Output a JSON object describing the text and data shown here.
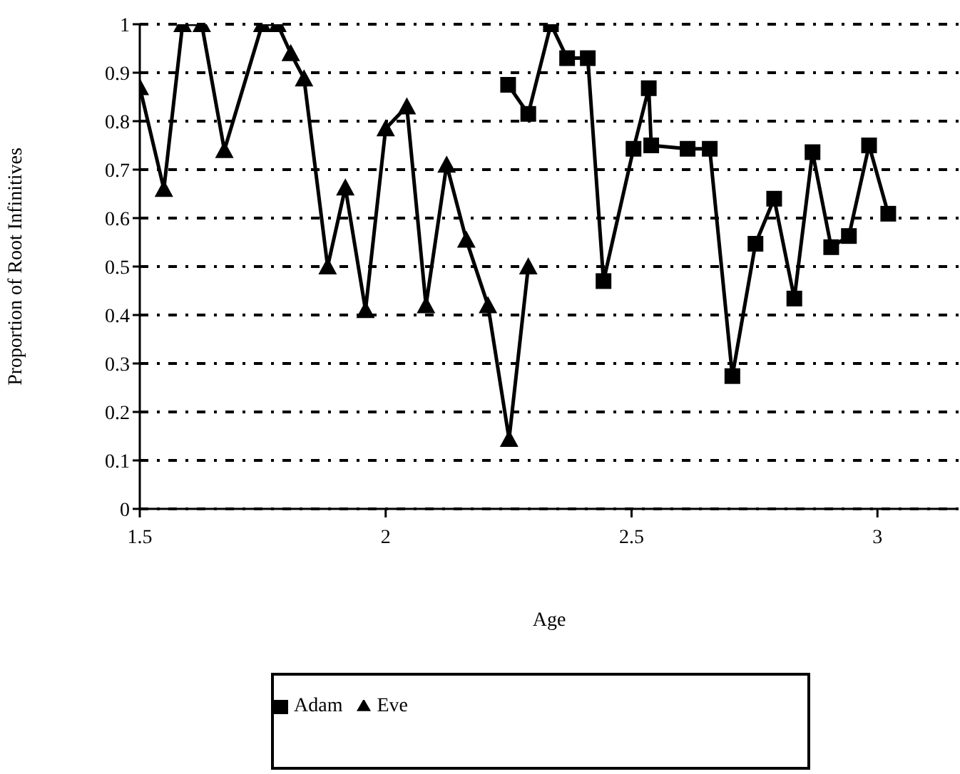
{
  "chart_data": {
    "type": "line",
    "xlabel": "Age",
    "ylabel": "Proportion of Root Infinitives",
    "xlim": [
      1.5,
      3.165
    ],
    "xticks": [
      1.5,
      2,
      2.5,
      3
    ],
    "ylim": [
      0,
      1
    ],
    "yticks": [
      0,
      0.1,
      0.2,
      0.3,
      0.4,
      0.5,
      0.6,
      0.7,
      0.8,
      0.9,
      1
    ],
    "grid": "y",
    "legend": "bottom",
    "line_style": "solid",
    "series": [
      {
        "name": "Adam",
        "color": "#000000",
        "marker": "square",
        "x": [
          2.249,
          2.29,
          2.336,
          2.369,
          2.411,
          2.443,
          2.504,
          2.535,
          2.54,
          2.614,
          2.659,
          2.705,
          2.752,
          2.79,
          2.831,
          2.868,
          2.906,
          2.942,
          2.983,
          3.022
        ],
        "values": [
          0.875,
          0.815,
          1.0,
          0.93,
          0.93,
          0.47,
          0.743,
          0.868,
          0.75,
          0.743,
          0.743,
          0.274,
          0.547,
          0.64,
          0.434,
          0.736,
          0.54,
          0.563,
          0.75,
          0.609
        ]
      },
      {
        "name": "Eve",
        "color": "#000000",
        "marker": "triangle",
        "x": [
          1.5,
          1.549,
          1.587,
          1.626,
          1.672,
          1.749,
          1.78,
          1.807,
          1.834,
          1.882,
          1.918,
          1.959,
          2.0,
          2.043,
          2.082,
          2.124,
          2.164,
          2.208,
          2.251,
          2.29
        ],
        "values": [
          0.87,
          0.66,
          1.0,
          1.0,
          0.74,
          1.0,
          1.0,
          0.94,
          0.888,
          0.5,
          0.663,
          0.41,
          0.785,
          0.83,
          0.42,
          0.71,
          0.555,
          0.42,
          0.144,
          0.5
        ]
      }
    ]
  }
}
